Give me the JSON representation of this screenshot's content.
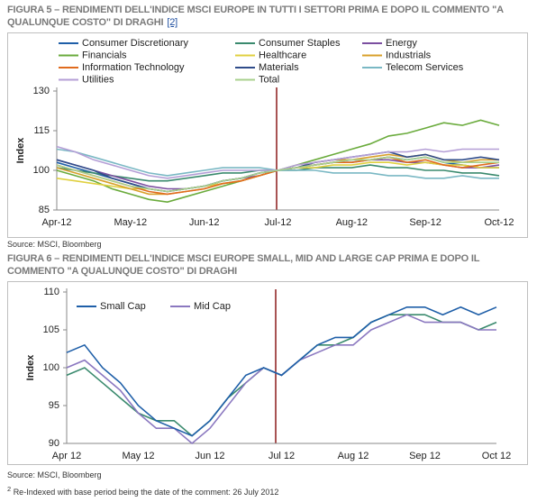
{
  "chart_data": [
    {
      "type": "line",
      "title": "FIGURA 5 – RENDIMENTI DELL'INDICE MSCI EUROPE IN TUTTI I SETTORI PRIMA E DOPO IL COMMENTO \"A QUALUNQUE COSTO\" DI DRAGHI",
      "title_ref": "[2]",
      "ylabel": "Index",
      "source": "Source: MSCI, Bloomberg",
      "categories": [
        "Apr-12",
        null,
        null,
        null,
        "May-12",
        null,
        null,
        null,
        "Jun-12",
        null,
        null,
        null,
        "Jul-12",
        null,
        null,
        null,
        "Aug-12",
        null,
        null,
        null,
        "Sep-12",
        null,
        null,
        null,
        "Oct-12"
      ],
      "ylim": [
        85,
        130
      ],
      "yticks": [
        85,
        100,
        115,
        130
      ],
      "series": [
        {
          "name": "Consumer Discretionary",
          "color": "#1f5fa8",
          "values": [
            103,
            101,
            99,
            97,
            95,
            93,
            92,
            93,
            94,
            96,
            97,
            99,
            100,
            101,
            102,
            103,
            104,
            104,
            105,
            104,
            105,
            103,
            102,
            101,
            101
          ]
        },
        {
          "name": "Consumer Staples",
          "color": "#3a8a6e",
          "values": [
            101,
            100,
            99,
            98,
            97,
            96,
            96,
            97,
            98,
            99,
            99,
            100,
            100,
            100,
            101,
            101,
            101,
            102,
            101,
            101,
            100,
            100,
            99,
            99,
            98
          ]
        },
        {
          "name": "Energy",
          "color": "#7b4fa0",
          "values": [
            104,
            102,
            100,
            98,
            96,
            94,
            93,
            93,
            94,
            96,
            97,
            98,
            100,
            101,
            102,
            103,
            103,
            104,
            104,
            103,
            103,
            102,
            101,
            101,
            102
          ]
        },
        {
          "name": "Financials",
          "color": "#6aab3c",
          "values": [
            100,
            98,
            96,
            93,
            91,
            89,
            88,
            90,
            92,
            94,
            96,
            98,
            100,
            102,
            104,
            106,
            108,
            110,
            113,
            114,
            116,
            118,
            117,
            119,
            117
          ]
        },
        {
          "name": "Healthcare",
          "color": "#e0d040",
          "values": [
            97,
            96,
            95,
            94,
            93,
            93,
            92,
            93,
            94,
            95,
            96,
            98,
            100,
            101,
            101,
            102,
            102,
            103,
            103,
            102,
            103,
            102,
            102,
            101,
            101
          ]
        },
        {
          "name": "Industrials",
          "color": "#d8a02a",
          "values": [
            101,
            99,
            97,
            95,
            93,
            91,
            91,
            92,
            93,
            95,
            96,
            98,
            100,
            101,
            103,
            104,
            104,
            105,
            106,
            105,
            106,
            104,
            103,
            104,
            104
          ]
        },
        {
          "name": "Information Technology",
          "color": "#e06b1e",
          "values": [
            102,
            100,
            98,
            96,
            94,
            92,
            91,
            92,
            93,
            95,
            96,
            98,
            100,
            101,
            102,
            103,
            103,
            104,
            105,
            103,
            104,
            102,
            101,
            102,
            103
          ]
        },
        {
          "name": "Materials",
          "color": "#2f4c8a",
          "values": [
            104,
            102,
            100,
            97,
            95,
            93,
            92,
            93,
            94,
            96,
            97,
            99,
            100,
            101,
            103,
            104,
            105,
            106,
            107,
            105,
            106,
            104,
            104,
            105,
            104
          ]
        },
        {
          "name": "Telecom Services",
          "color": "#7ab8c4",
          "values": [
            108,
            107,
            105,
            103,
            101,
            99,
            98,
            99,
            100,
            101,
            101,
            101,
            100,
            100,
            100,
            99,
            99,
            99,
            98,
            98,
            97,
            97,
            98,
            97,
            97
          ]
        },
        {
          "name": "Utilities",
          "color": "#b49ed6",
          "values": [
            109,
            107,
            104,
            102,
            100,
            98,
            97,
            98,
            99,
            100,
            100,
            100,
            100,
            102,
            103,
            104,
            105,
            106,
            107,
            107,
            108,
            107,
            108,
            108,
            108
          ]
        },
        {
          "name": "Total",
          "color": "#a8d08d",
          "values": [
            102,
            100,
            98,
            96,
            94,
            93,
            92,
            93,
            94,
            96,
            97,
            99,
            100,
            101,
            102,
            103,
            104,
            104,
            105,
            104,
            105,
            103,
            103,
            103,
            103
          ]
        }
      ]
    },
    {
      "type": "line",
      "title": "FIGURA 6 – RENDIMENTI DELL'INDICE MSCI EUROPE SMALL, MID AND LARGE CAP PRIMA E DOPO IL COMMENTO \"A QUALUNQUE COSTO\" DI DRAGHI",
      "ylabel": "Index",
      "source": "Source: MSCI, Bloomberg",
      "categories": [
        "Apr 12",
        null,
        null,
        null,
        "May 12",
        null,
        null,
        null,
        "Jun 12",
        null,
        null,
        null,
        "Jul 12",
        null,
        null,
        null,
        "Aug 12",
        null,
        null,
        null,
        "Sep 12",
        null,
        null,
        null,
        "Oct 12"
      ],
      "ylim": [
        90,
        110
      ],
      "yticks": [
        90,
        95,
        100,
        105,
        110
      ],
      "series": [
        {
          "color": "#3a8a6e",
          "values": [
            99,
            100,
            98,
            96,
            94,
            93,
            93,
            91,
            93,
            96,
            98,
            100,
            99,
            101,
            103,
            103,
            104,
            106,
            107,
            107,
            107,
            106,
            106,
            105,
            106
          ]
        },
        {
          "name": "Mid Cap",
          "color": "#8b78c0",
          "values": [
            100,
            101,
            99,
            97,
            94,
            92,
            92,
            90,
            92,
            95,
            98,
            100,
            99,
            101,
            102,
            103,
            103,
            105,
            106,
            107,
            106,
            106,
            106,
            105,
            105
          ]
        },
        {
          "name": "Small Cap",
          "color": "#1f5fa8",
          "values": [
            102,
            103,
            100,
            98,
            95,
            93,
            92,
            91,
            93,
            96,
            99,
            100,
            99,
            101,
            103,
            104,
            104,
            106,
            107,
            108,
            108,
            107,
            108,
            107,
            108
          ]
        }
      ]
    }
  ],
  "footnote": {
    "number": "2",
    "text": "Re-Indexed with base period being the date of the comment: 26 July 2012"
  }
}
